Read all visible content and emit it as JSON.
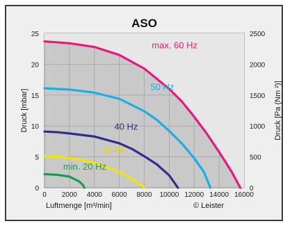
{
  "chart_data": {
    "type": "line",
    "title": "ASO",
    "xlabel": "Luftmenge [m³/min]",
    "ylabel": "Druck [mbar]",
    "y2label": "Druck [Pa (Nm ²)]",
    "credit": "© Leister",
    "xlim": [
      0,
      16000
    ],
    "ylim": [
      0,
      25
    ],
    "y2lim": [
      0,
      2500
    ],
    "xticks": [
      "0",
      "2000",
      "4000",
      "6000",
      "8000",
      "10000",
      "12000",
      "14000",
      "16000"
    ],
    "yticks": [
      "0",
      "5",
      "10",
      "15",
      "20",
      "25"
    ],
    "y2ticks": [
      "0",
      "500",
      "1000",
      "1500",
      "2000",
      "2500"
    ],
    "grid": true,
    "series": [
      {
        "name": "max. 60 Hz",
        "color": "#e8197d",
        "x": [
          0,
          2000,
          4000,
          6000,
          8000,
          10000,
          11000,
          12000,
          13000,
          14000,
          15000,
          15700
        ],
        "y": [
          23.7,
          23.4,
          22.8,
          21.5,
          19.3,
          16.0,
          14.0,
          11.5,
          8.8,
          5.8,
          2.6,
          0
        ]
      },
      {
        "name": "50 Hz",
        "color": "#18aee6",
        "x": [
          0,
          2000,
          4000,
          6000,
          8000,
          9000,
          10000,
          11000,
          12000,
          12800,
          13300
        ],
        "y": [
          16.1,
          15.9,
          15.4,
          14.4,
          12.4,
          11.0,
          9.2,
          7.2,
          4.8,
          2.5,
          0
        ]
      },
      {
        "name": "40 Hz",
        "color": "#2e2f8a",
        "x": [
          0,
          1000,
          2000,
          4000,
          6000,
          7000,
          8000,
          9000,
          10000,
          10700
        ],
        "y": [
          9.1,
          9.0,
          8.8,
          8.3,
          7.2,
          6.3,
          5.1,
          3.8,
          2.0,
          0
        ]
      },
      {
        "name": "30 Hz",
        "color": "#f1e600",
        "x": [
          0,
          1000,
          2000,
          3000,
          4000,
          5000,
          6000,
          7000,
          7700,
          8000
        ],
        "y": [
          5.1,
          5.0,
          4.8,
          4.5,
          4.0,
          3.3,
          2.5,
          1.4,
          0.5,
          0
        ]
      },
      {
        "name": "min. 20 Hz",
        "color": "#14a04a",
        "x": [
          0,
          1000,
          2000,
          2800,
          3100,
          3200
        ],
        "y": [
          2.2,
          2.1,
          1.8,
          1.0,
          0.4,
          0
        ]
      }
    ],
    "series_label_colors": {
      "max. 60 Hz": "#e8197d",
      "50 Hz": "#18aee6",
      "40 Hz": "#2e2f8a",
      "30 Hz": "#e8d800",
      "min. 20 Hz": "#14a04a"
    }
  }
}
